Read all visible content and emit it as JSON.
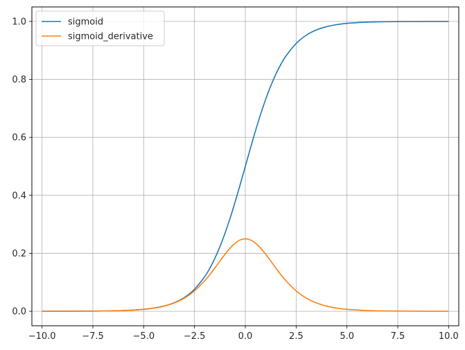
{
  "chart_data": {
    "type": "line",
    "title": "",
    "xlabel": "",
    "ylabel": "",
    "xlim": [
      -10.5,
      10.5
    ],
    "ylim": [
      -0.05,
      1.05
    ],
    "grid": true,
    "legend_position": "top-left",
    "x_ticks": [
      -10.0,
      -7.5,
      -5.0,
      -2.5,
      0.0,
      2.5,
      5.0,
      7.5,
      10.0
    ],
    "x_tick_labels": [
      "−10.0",
      "−7.5",
      "−5.0",
      "−2.5",
      "0.0",
      "2.5",
      "5.0",
      "7.5",
      "10.0"
    ],
    "y_ticks": [
      0.0,
      0.2,
      0.4,
      0.6,
      0.8,
      1.0
    ],
    "y_tick_labels": [
      "0.0",
      "0.2",
      "0.4",
      "0.6",
      "0.8",
      "1.0"
    ],
    "x": [
      -10,
      -9,
      -8,
      -7,
      -6,
      -5,
      -4.5,
      -4,
      -3.5,
      -3,
      -2.5,
      -2,
      -1.75,
      -1.5,
      -1.25,
      -1,
      -0.75,
      -0.5,
      -0.25,
      0,
      0.25,
      0.5,
      0.75,
      1,
      1.25,
      1.5,
      1.75,
      2,
      2.5,
      3,
      3.5,
      4,
      4.5,
      5,
      6,
      7,
      8,
      9,
      10
    ],
    "series": [
      {
        "name": "sigmoid",
        "color": "#1f77b4",
        "values": [
          4.54e-05,
          0.000123,
          0.000335,
          0.000911,
          0.00247,
          0.00669,
          0.011,
          0.018,
          0.0293,
          0.0474,
          0.0759,
          0.1192,
          0.148,
          0.1824,
          0.2227,
          0.2689,
          0.3208,
          0.3775,
          0.4378,
          0.5,
          0.5622,
          0.6225,
          0.6792,
          0.7311,
          0.7773,
          0.8176,
          0.852,
          0.8808,
          0.9241,
          0.9526,
          0.9707,
          0.982,
          0.989,
          0.9933,
          0.9975,
          0.9991,
          0.99966,
          0.99988,
          0.99995
        ]
      },
      {
        "name": "sigmoid_derivative",
        "color": "#ff7f0e",
        "values": [
          4.54e-05,
          0.000123,
          0.000335,
          0.00091,
          0.00247,
          0.00665,
          0.0109,
          0.0177,
          0.0285,
          0.0452,
          0.0701,
          0.105,
          0.1261,
          0.1491,
          0.1731,
          0.1966,
          0.2179,
          0.235,
          0.2461,
          0.25,
          0.2461,
          0.235,
          0.2179,
          0.1966,
          0.1731,
          0.1491,
          0.1261,
          0.105,
          0.0701,
          0.0452,
          0.0285,
          0.0177,
          0.0109,
          0.00665,
          0.00247,
          0.00091,
          0.000335,
          0.000123,
          4.54e-05
        ]
      }
    ]
  }
}
